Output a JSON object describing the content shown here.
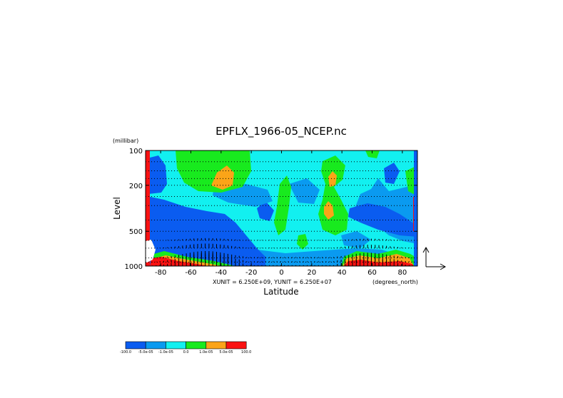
{
  "chart_data": {
    "type": "heatmap",
    "title": "EPFLX_1966-05_NCEP.nc",
    "xlabel": "Latitude",
    "ylabel": "Level",
    "y_unit": "(millibar)",
    "x_unit": "(degrees_north)",
    "vector_scale": "XUNIT = 6.250E+09, YUNIT = 6.250E+07",
    "xlim": [
      -90,
      90
    ],
    "ylim": [
      1000,
      100
    ],
    "y_scale": "log",
    "x_ticks": [
      -80,
      -60,
      -40,
      -20,
      0,
      20,
      40,
      60,
      80
    ],
    "x_tick_labels": [
      "-80",
      "-60",
      "-40",
      "-20",
      "0",
      "20",
      "40",
      "60",
      "80"
    ],
    "y_ticks": [
      100,
      200,
      500,
      1000
    ],
    "y_tick_labels": [
      "100",
      "200",
      "500",
      "1000"
    ],
    "dotted_levels": [
      100,
      125,
      150,
      175,
      200,
      250,
      300,
      400,
      500,
      600,
      700,
      850,
      925,
      1000
    ],
    "colorbar": {
      "labels": [
        "-100.0",
        "-5.0e-05",
        "-1.0e-05",
        "0.0",
        "1.0e-05",
        "5.0e-05",
        "100.0"
      ],
      "colors": [
        "#0a5cf0",
        "#0a9af0",
        "#12f0f0",
        "#18ea1e",
        "#fba418",
        "#fa1212"
      ]
    },
    "colors": {
      "strong_neg": "#0a5cf0",
      "weak_neg": "#0a9af0",
      "near_zero": "#12f0f0",
      "weak_pos": "#18ea1e",
      "mid_pos": "#fba418",
      "strong_pos": "#fa1212"
    }
  }
}
